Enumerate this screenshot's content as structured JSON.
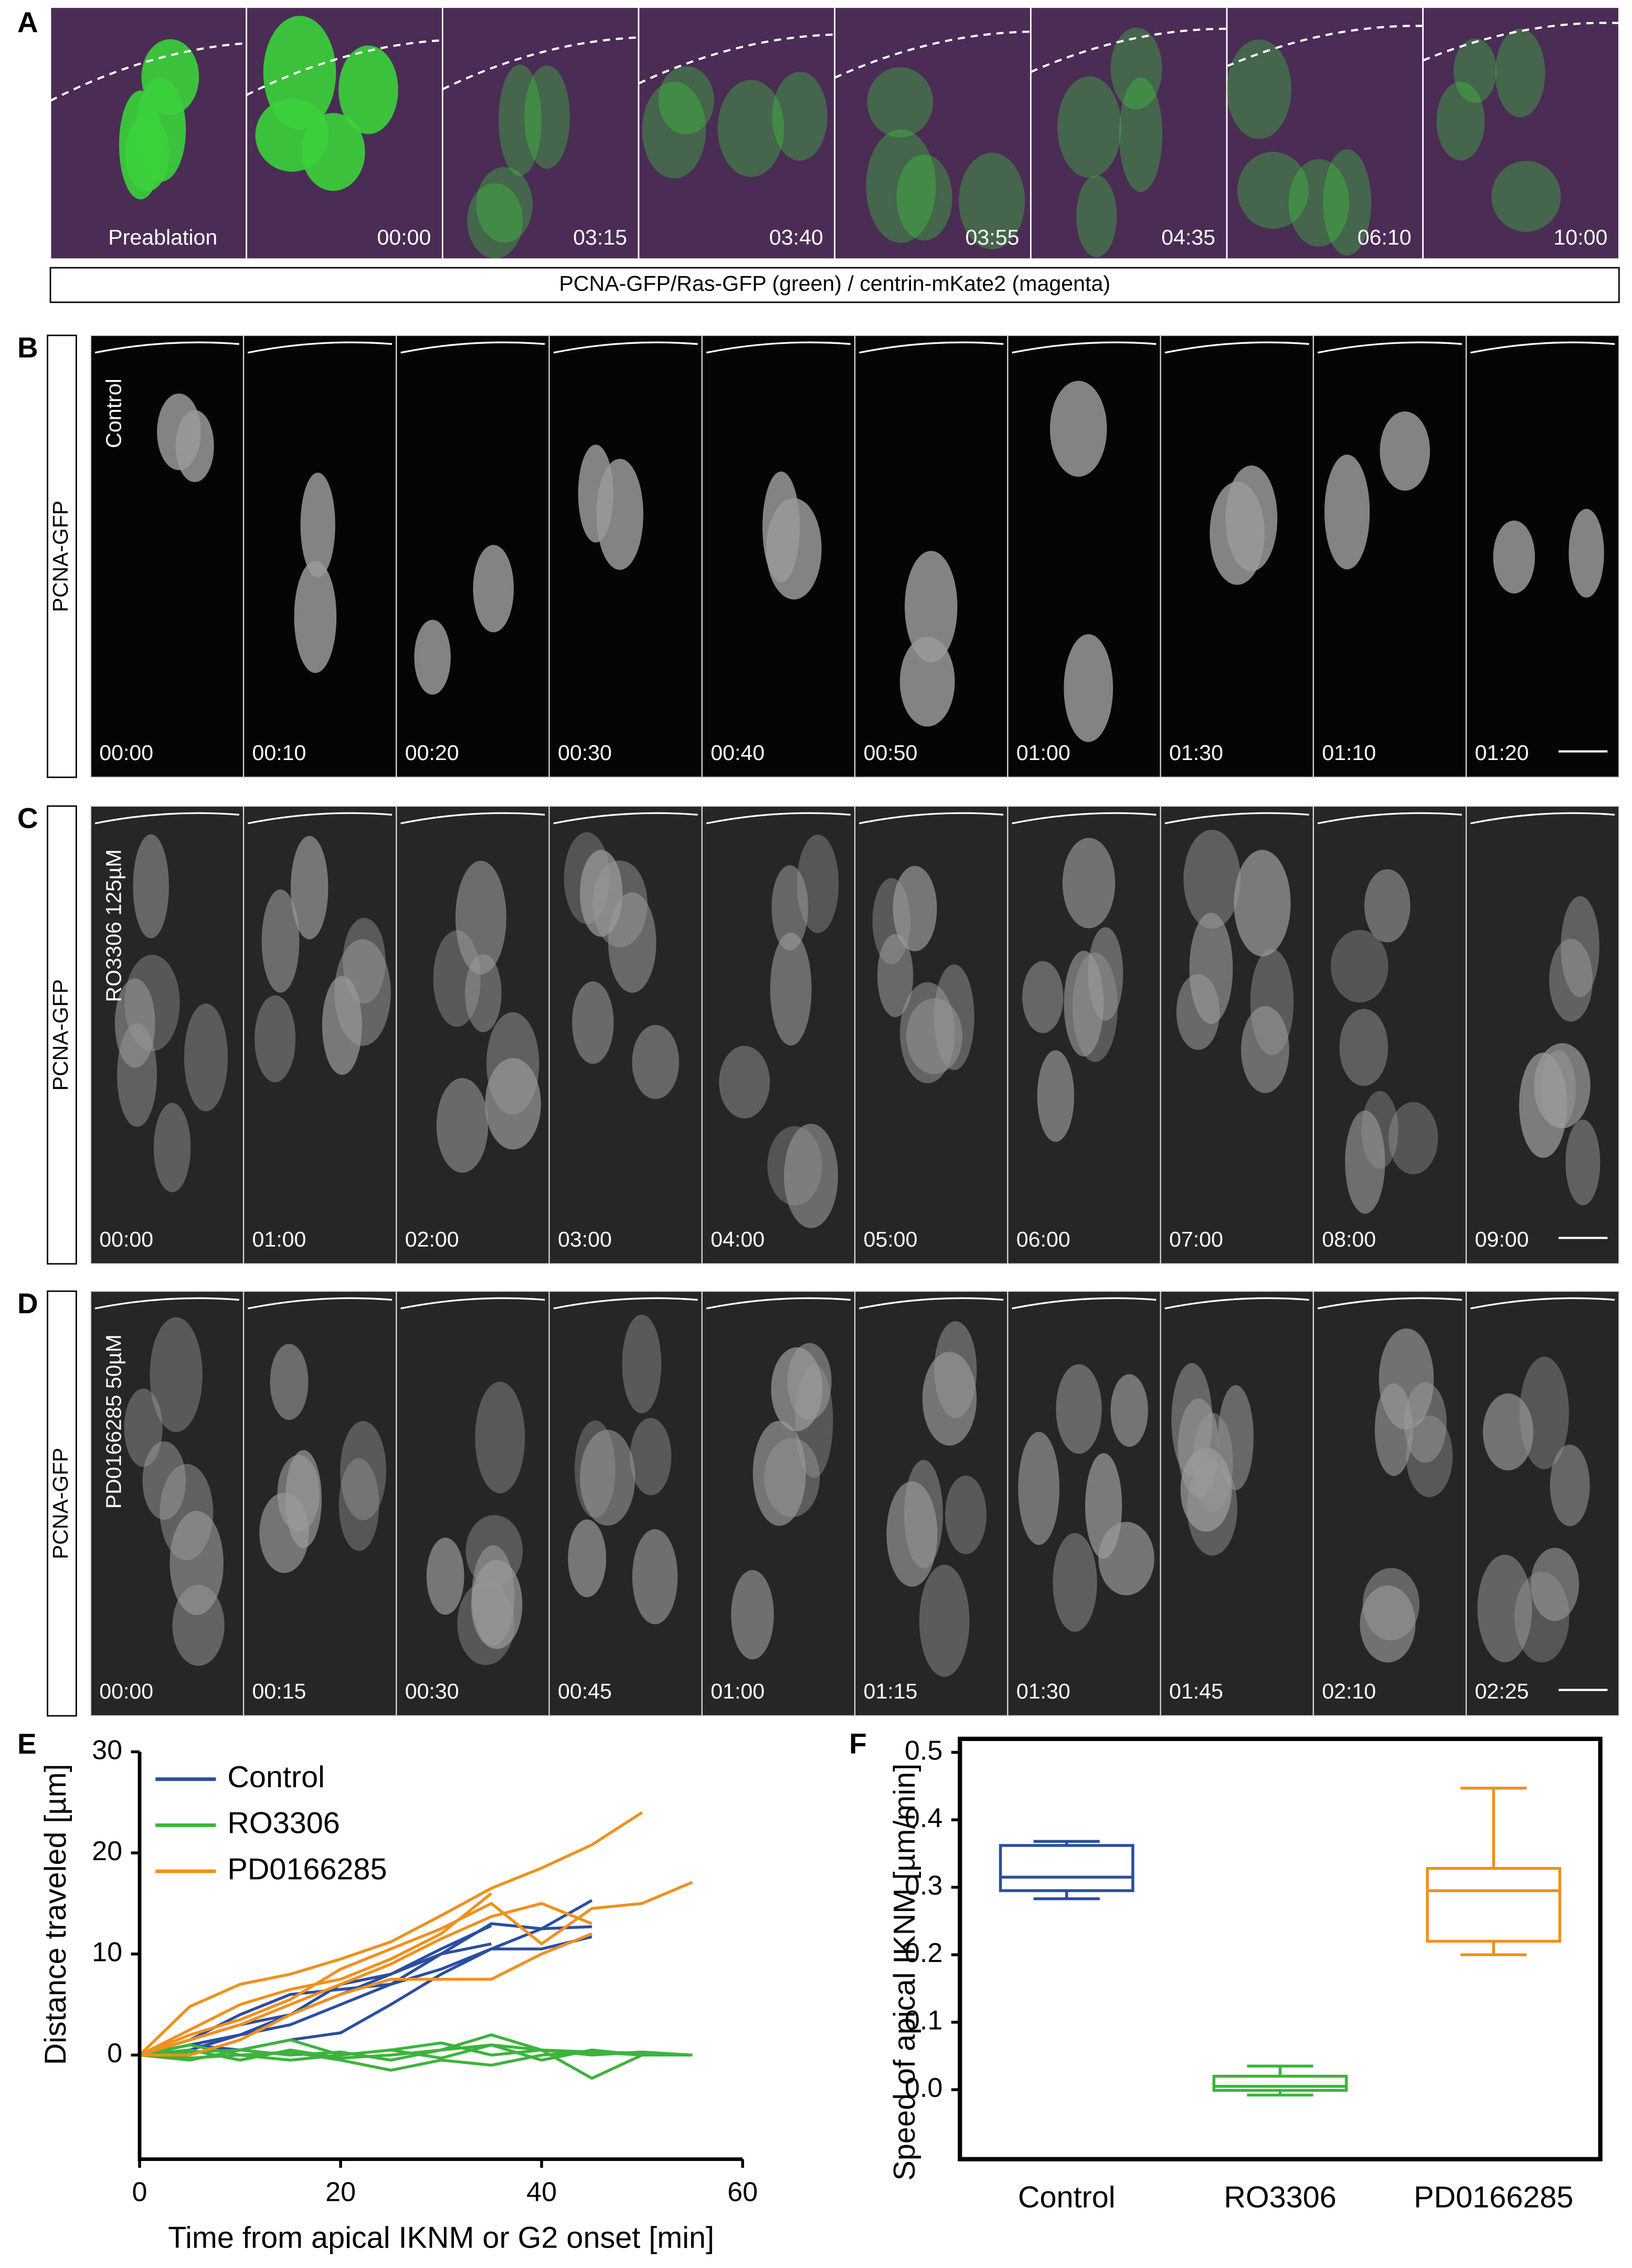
{
  "panels": [
    {
      "label": "A",
      "times": [
        "Preablation",
        "00:00",
        "03:15",
        "03:40",
        "03:55",
        "04:35",
        "06:10",
        "10:00"
      ],
      "caption": "PCNA-GFP/Ras-GFP (green) / centrin-mKate2 (magenta)"
    },
    {
      "label": "B",
      "side_label": "PCNA-GFP",
      "condition": "Control",
      "times": [
        "00:00",
        "00:10",
        "00:20",
        "00:30",
        "00:40",
        "00:50",
        "01:00",
        "01:30",
        "01:10",
        "01:20"
      ]
    },
    {
      "label": "C",
      "side_label": "PCNA-GFP",
      "condition": "RO3306 125µM",
      "times": [
        "00:00",
        "01:00",
        "02:00",
        "03:00",
        "04:00",
        "05:00",
        "06:00",
        "07:00",
        "08:00",
        "09:00"
      ]
    },
    {
      "label": "D",
      "side_label": "PCNA-GFP",
      "condition": "PD0166285 50µM",
      "times": [
        "00:00",
        "00:15",
        "00:30",
        "00:45",
        "01:00",
        "01:15",
        "01:30",
        "01:45",
        "02:10",
        "02:25"
      ]
    }
  ],
  "chart_data": [
    {
      "type": "line",
      "panel_label": "E",
      "x_label": "Time from apical IKNM or G2 onset [min]",
      "y_label": "Distance traveled  [µm]",
      "x": [
        0,
        5,
        10,
        15,
        20,
        25,
        30,
        35,
        40,
        45,
        50,
        55
      ],
      "xlim": [
        0,
        60
      ],
      "xticks": [
        0,
        20,
        40,
        60
      ],
      "ylim": [
        -10.3,
        30
      ],
      "yticks": [
        0,
        10,
        20,
        30
      ],
      "legend": "upper left",
      "series": [
        {
          "name": "Control",
          "color": "#2b4ea2",
          "tracks": [
            [
              0,
              1.5,
              3,
              4,
              6,
              8,
              10,
              13,
              12.5,
              15.3,
              null,
              null
            ],
            [
              0,
              1,
              0.5,
              1.5,
              2.2,
              5,
              8,
              10.5,
              10.5,
              11.7,
              null,
              null
            ],
            [
              0,
              0.5,
              2,
              3,
              5,
              7,
              8.5,
              10.5,
              12.5,
              12.7,
              null,
              null
            ],
            [
              0,
              1,
              2,
              4,
              7,
              8,
              10.5,
              12.8,
              null,
              null,
              null,
              null
            ],
            [
              0,
              1.5,
              4,
              6,
              6.5,
              7,
              10,
              11,
              null,
              null,
              null,
              null
            ]
          ]
        },
        {
          "name": "RO3306",
          "color": "#3cb43c",
          "tracks": [
            [
              0,
              -0.5,
              0.5,
              0,
              0.3,
              -0.5,
              0.5,
              1,
              0.5,
              -2.3,
              0,
              0
            ],
            [
              0,
              0.5,
              -0.5,
              0.5,
              -0.3,
              0,
              0.5,
              2,
              0.5,
              0.3,
              0.2,
              0
            ],
            [
              0,
              1,
              0,
              -0.5,
              0,
              0.5,
              -0.3,
              1,
              -0.5,
              0.5,
              0,
              0
            ],
            [
              0,
              0.3,
              0.5,
              1.5,
              0,
              0.5,
              1.2,
              0,
              0.5,
              0,
              0.3,
              0
            ],
            [
              0,
              -0.3,
              0,
              0.3,
              -0.5,
              -1.5,
              -0.5,
              -1,
              0,
              0.3,
              0,
              0
            ]
          ]
        },
        {
          "name": "PD0166285",
          "color": "#f0901e",
          "tracks": [
            [
              0,
              4.8,
              7,
              8,
              9.5,
              11.2,
              13.8,
              16.5,
              18.5,
              20.8,
              24,
              null
            ],
            [
              0,
              2,
              3.5,
              5.5,
              8.5,
              10.5,
              12.5,
              15,
              11,
              14.5,
              15,
              17.1
            ],
            [
              0,
              1.5,
              3,
              5,
              7,
              9,
              11.5,
              13.7,
              15,
              13,
              null,
              null
            ],
            [
              0,
              2.5,
              5,
              6.5,
              7.5,
              9.5,
              12,
              16,
              null,
              null,
              null,
              null
            ],
            [
              0,
              0,
              1.5,
              4,
              6,
              7.5,
              7.5,
              7.5,
              10,
              12,
              null,
              null
            ]
          ]
        }
      ]
    },
    {
      "type": "box",
      "panel_label": "F",
      "y_label": "Speed of apical IKNM [µm/min]",
      "categories": [
        "Control",
        "RO3306",
        "PD0166285"
      ],
      "ylim": [
        -0.103,
        0.52
      ],
      "yticks": [
        {
          "value": 0,
          "label": "0.0"
        },
        0.1,
        0.2,
        0.3,
        0.4,
        0.5
      ],
      "boxes": [
        {
          "color": "#2b4ea2",
          "min": 0.283,
          "q1": 0.295,
          "median": 0.315,
          "q3": 0.362,
          "max": 0.368
        },
        {
          "color": "#3cb43c",
          "min": -0.008,
          "q1": -0.001,
          "median": 0.005,
          "q3": 0.02,
          "max": 0.035
        },
        {
          "color": "#f0901e",
          "min": 0.2,
          "q1": 0.22,
          "median": 0.295,
          "q3": 0.328,
          "max": 0.447
        }
      ]
    }
  ]
}
